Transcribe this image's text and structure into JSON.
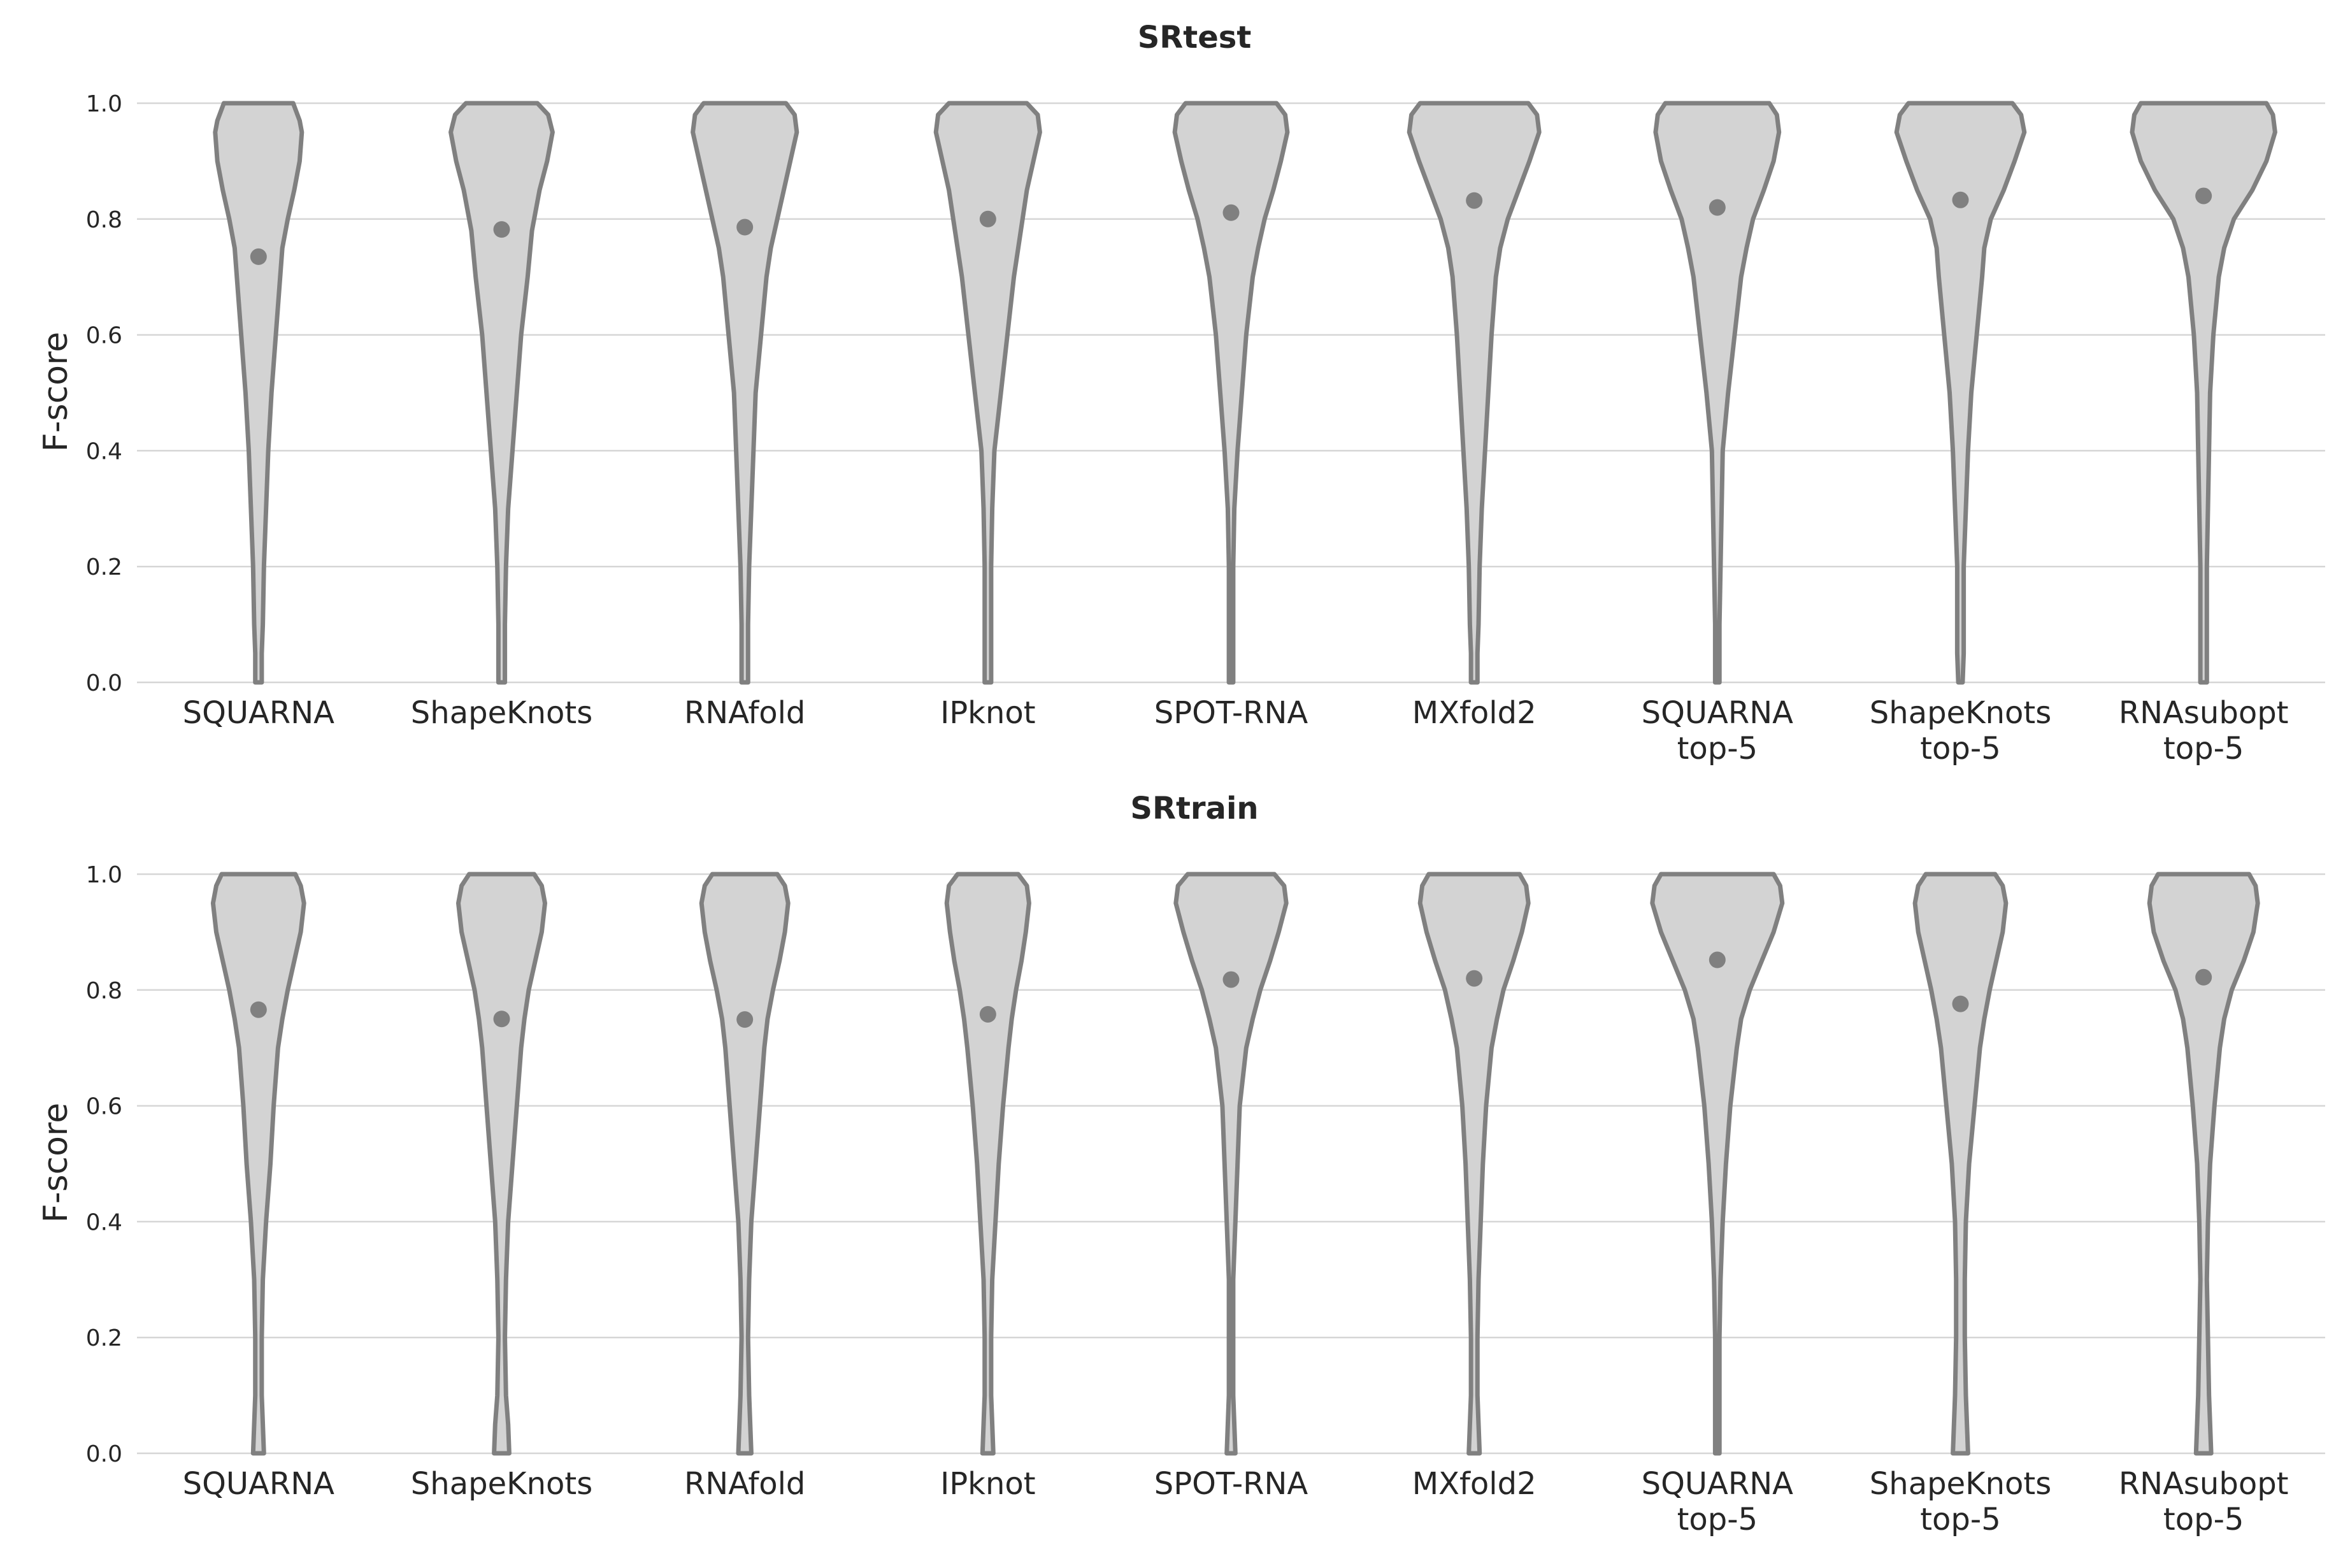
{
  "colors": {
    "violin_fill": "#d3d3d3",
    "violin_edge": "#808080",
    "grid": "#d6d6d6",
    "text": "#262626"
  },
  "chart_data": [
    {
      "type": "violin",
      "title": "SRtest",
      "xlabel": "",
      "ylabel": "F-score",
      "ylim": [
        0,
        1
      ],
      "yticks": [
        "0.0",
        "0.2",
        "0.4",
        "0.6",
        "0.8",
        "1.0"
      ],
      "grid": "horizontal",
      "categories": [
        [
          "SQUARNA"
        ],
        [
          "ShapeKnots"
        ],
        [
          "RNAfold"
        ],
        [
          "IPknot"
        ],
        [
          "SPOT-RNA"
        ],
        [
          "MXfold2"
        ],
        [
          "SQUARNA",
          "top-5"
        ],
        [
          "ShapeKnots",
          "top-5"
        ],
        [
          "RNAsubopt",
          "top-5"
        ]
      ],
      "means": [
        0.735,
        0.782,
        0.786,
        0.8,
        0.811,
        0.832,
        0.82,
        0.833,
        0.84
      ],
      "profiles": [
        [
          [
            0,
            0.03
          ],
          [
            0.05,
            0.03
          ],
          [
            0.1,
            0.04
          ],
          [
            0.2,
            0.05
          ],
          [
            0.25,
            0.06
          ],
          [
            0.3,
            0.07
          ],
          [
            0.4,
            0.09
          ],
          [
            0.5,
            0.12
          ],
          [
            0.6,
            0.16
          ],
          [
            0.65,
            0.18
          ],
          [
            0.7,
            0.2
          ],
          [
            0.75,
            0.22
          ],
          [
            0.8,
            0.27
          ],
          [
            0.85,
            0.33
          ],
          [
            0.9,
            0.38
          ],
          [
            0.95,
            0.4
          ],
          [
            0.97,
            0.38
          ],
          [
            0.99,
            0.34
          ],
          [
            1,
            0.32
          ]
        ],
        [
          [
            0,
            0.03
          ],
          [
            0.05,
            0.03
          ],
          [
            0.1,
            0.03
          ],
          [
            0.2,
            0.04
          ],
          [
            0.3,
            0.06
          ],
          [
            0.4,
            0.1
          ],
          [
            0.5,
            0.14
          ],
          [
            0.6,
            0.18
          ],
          [
            0.7,
            0.24
          ],
          [
            0.78,
            0.28
          ],
          [
            0.85,
            0.35
          ],
          [
            0.9,
            0.42
          ],
          [
            0.95,
            0.47
          ],
          [
            0.98,
            0.43
          ],
          [
            1,
            0.33
          ]
        ],
        [
          [
            0,
            0.03
          ],
          [
            0.05,
            0.03
          ],
          [
            0.1,
            0.03
          ],
          [
            0.2,
            0.04
          ],
          [
            0.3,
            0.06
          ],
          [
            0.4,
            0.08
          ],
          [
            0.5,
            0.1
          ],
          [
            0.6,
            0.15
          ],
          [
            0.7,
            0.2
          ],
          [
            0.75,
            0.24
          ],
          [
            0.8,
            0.3
          ],
          [
            0.85,
            0.36
          ],
          [
            0.9,
            0.42
          ],
          [
            0.95,
            0.48
          ],
          [
            0.98,
            0.46
          ],
          [
            1,
            0.38
          ]
        ],
        [
          [
            0,
            0.03
          ],
          [
            0.1,
            0.03
          ],
          [
            0.2,
            0.03
          ],
          [
            0.3,
            0.04
          ],
          [
            0.4,
            0.06
          ],
          [
            0.5,
            0.12
          ],
          [
            0.6,
            0.18
          ],
          [
            0.7,
            0.24
          ],
          [
            0.75,
            0.28
          ],
          [
            0.8,
            0.32
          ],
          [
            0.85,
            0.36
          ],
          [
            0.9,
            0.42
          ],
          [
            0.95,
            0.48
          ],
          [
            0.98,
            0.46
          ],
          [
            1,
            0.36
          ]
        ],
        [
          [
            0,
            0.02
          ],
          [
            0.1,
            0.02
          ],
          [
            0.2,
            0.02
          ],
          [
            0.3,
            0.03
          ],
          [
            0.4,
            0.06
          ],
          [
            0.5,
            0.1
          ],
          [
            0.6,
            0.14
          ],
          [
            0.7,
            0.2
          ],
          [
            0.75,
            0.25
          ],
          [
            0.8,
            0.31
          ],
          [
            0.85,
            0.39
          ],
          [
            0.9,
            0.46
          ],
          [
            0.95,
            0.52
          ],
          [
            0.98,
            0.5
          ],
          [
            1,
            0.42
          ]
        ],
        [
          [
            0,
            0.03
          ],
          [
            0.05,
            0.03
          ],
          [
            0.1,
            0.04
          ],
          [
            0.2,
            0.05
          ],
          [
            0.3,
            0.07
          ],
          [
            0.4,
            0.1
          ],
          [
            0.5,
            0.13
          ],
          [
            0.6,
            0.16
          ],
          [
            0.7,
            0.2
          ],
          [
            0.75,
            0.24
          ],
          [
            0.8,
            0.31
          ],
          [
            0.85,
            0.41
          ],
          [
            0.9,
            0.51
          ],
          [
            0.95,
            0.6
          ],
          [
            0.98,
            0.58
          ],
          [
            1,
            0.5
          ]
        ],
        [
          [
            0,
            0.02
          ],
          [
            0.1,
            0.02
          ],
          [
            0.2,
            0.03
          ],
          [
            0.3,
            0.04
          ],
          [
            0.4,
            0.05
          ],
          [
            0.5,
            0.1
          ],
          [
            0.6,
            0.16
          ],
          [
            0.7,
            0.22
          ],
          [
            0.75,
            0.27
          ],
          [
            0.8,
            0.33
          ],
          [
            0.85,
            0.43
          ],
          [
            0.9,
            0.52
          ],
          [
            0.95,
            0.57
          ],
          [
            0.98,
            0.55
          ],
          [
            1,
            0.48
          ]
        ],
        [
          [
            0,
            0.02
          ],
          [
            0.05,
            0.03
          ],
          [
            0.1,
            0.03
          ],
          [
            0.2,
            0.03
          ],
          [
            0.3,
            0.05
          ],
          [
            0.4,
            0.07
          ],
          [
            0.5,
            0.1
          ],
          [
            0.6,
            0.15
          ],
          [
            0.7,
            0.2
          ],
          [
            0.75,
            0.22
          ],
          [
            0.8,
            0.28
          ],
          [
            0.85,
            0.4
          ],
          [
            0.9,
            0.5
          ],
          [
            0.95,
            0.59
          ],
          [
            0.98,
            0.56
          ],
          [
            1,
            0.48
          ]
        ],
        [
          [
            0,
            0.03
          ],
          [
            0.1,
            0.03
          ],
          [
            0.2,
            0.03
          ],
          [
            0.3,
            0.04
          ],
          [
            0.4,
            0.05
          ],
          [
            0.5,
            0.06
          ],
          [
            0.6,
            0.09
          ],
          [
            0.7,
            0.14
          ],
          [
            0.75,
            0.19
          ],
          [
            0.8,
            0.28
          ],
          [
            0.85,
            0.45
          ],
          [
            0.9,
            0.58
          ],
          [
            0.95,
            0.66
          ],
          [
            0.98,
            0.64
          ],
          [
            1,
            0.58
          ]
        ]
      ]
    },
    {
      "type": "violin",
      "title": "SRtrain",
      "xlabel": "",
      "ylabel": "F-score",
      "ylim": [
        0,
        1
      ],
      "yticks": [
        "0.0",
        "0.2",
        "0.4",
        "0.6",
        "0.8",
        "1.0"
      ],
      "grid": "horizontal",
      "categories": [
        [
          "SQUARNA"
        ],
        [
          "ShapeKnots"
        ],
        [
          "RNAfold"
        ],
        [
          "IPknot"
        ],
        [
          "SPOT-RNA"
        ],
        [
          "MXfold2"
        ],
        [
          "SQUARNA",
          "top-5"
        ],
        [
          "ShapeKnots",
          "top-5"
        ],
        [
          "RNAsubopt",
          "top-5"
        ]
      ],
      "means": [
        0.766,
        0.75,
        0.749,
        0.758,
        0.818,
        0.82,
        0.852,
        0.776,
        0.822
      ],
      "profiles": [
        [
          [
            0,
            0.05
          ],
          [
            0.05,
            0.04
          ],
          [
            0.1,
            0.03
          ],
          [
            0.2,
            0.03
          ],
          [
            0.3,
            0.04
          ],
          [
            0.4,
            0.07
          ],
          [
            0.5,
            0.11
          ],
          [
            0.6,
            0.14
          ],
          [
            0.7,
            0.18
          ],
          [
            0.75,
            0.22
          ],
          [
            0.8,
            0.27
          ],
          [
            0.85,
            0.33
          ],
          [
            0.9,
            0.39
          ],
          [
            0.95,
            0.42
          ],
          [
            0.98,
            0.39
          ],
          [
            1,
            0.34
          ]
        ],
        [
          [
            0,
            0.07
          ],
          [
            0.05,
            0.06
          ],
          [
            0.1,
            0.04
          ],
          [
            0.2,
            0.03
          ],
          [
            0.3,
            0.04
          ],
          [
            0.4,
            0.06
          ],
          [
            0.5,
            0.1
          ],
          [
            0.6,
            0.14
          ],
          [
            0.7,
            0.18
          ],
          [
            0.75,
            0.21
          ],
          [
            0.8,
            0.25
          ],
          [
            0.85,
            0.31
          ],
          [
            0.9,
            0.37
          ],
          [
            0.95,
            0.4
          ],
          [
            0.98,
            0.37
          ],
          [
            1,
            0.3
          ]
        ],
        [
          [
            0,
            0.06
          ],
          [
            0.05,
            0.05
          ],
          [
            0.1,
            0.04
          ],
          [
            0.2,
            0.03
          ],
          [
            0.3,
            0.04
          ],
          [
            0.4,
            0.06
          ],
          [
            0.5,
            0.1
          ],
          [
            0.6,
            0.14
          ],
          [
            0.7,
            0.18
          ],
          [
            0.75,
            0.21
          ],
          [
            0.8,
            0.26
          ],
          [
            0.85,
            0.32
          ],
          [
            0.9,
            0.37
          ],
          [
            0.95,
            0.4
          ],
          [
            0.98,
            0.37
          ],
          [
            1,
            0.3
          ]
        ],
        [
          [
            0,
            0.05
          ],
          [
            0.05,
            0.04
          ],
          [
            0.1,
            0.03
          ],
          [
            0.2,
            0.03
          ],
          [
            0.3,
            0.04
          ],
          [
            0.4,
            0.07
          ],
          [
            0.5,
            0.1
          ],
          [
            0.6,
            0.14
          ],
          [
            0.7,
            0.19
          ],
          [
            0.75,
            0.22
          ],
          [
            0.8,
            0.26
          ],
          [
            0.85,
            0.31
          ],
          [
            0.9,
            0.35
          ],
          [
            0.95,
            0.38
          ],
          [
            0.98,
            0.36
          ],
          [
            1,
            0.28
          ]
        ],
        [
          [
            0,
            0.04
          ],
          [
            0.05,
            0.03
          ],
          [
            0.1,
            0.02
          ],
          [
            0.2,
            0.02
          ],
          [
            0.3,
            0.02
          ],
          [
            0.4,
            0.04
          ],
          [
            0.5,
            0.06
          ],
          [
            0.6,
            0.08
          ],
          [
            0.7,
            0.14
          ],
          [
            0.75,
            0.2
          ],
          [
            0.8,
            0.27
          ],
          [
            0.85,
            0.36
          ],
          [
            0.9,
            0.44
          ],
          [
            0.95,
            0.51
          ],
          [
            0.98,
            0.49
          ],
          [
            1,
            0.4
          ]
        ],
        [
          [
            0,
            0.05
          ],
          [
            0.05,
            0.04
          ],
          [
            0.1,
            0.03
          ],
          [
            0.2,
            0.03
          ],
          [
            0.3,
            0.04
          ],
          [
            0.4,
            0.06
          ],
          [
            0.5,
            0.08
          ],
          [
            0.6,
            0.11
          ],
          [
            0.7,
            0.16
          ],
          [
            0.75,
            0.21
          ],
          [
            0.8,
            0.27
          ],
          [
            0.85,
            0.36
          ],
          [
            0.9,
            0.44
          ],
          [
            0.95,
            0.5
          ],
          [
            0.98,
            0.48
          ],
          [
            1,
            0.42
          ]
        ],
        [
          [
            0,
            0.02
          ],
          [
            0.1,
            0.02
          ],
          [
            0.2,
            0.02
          ],
          [
            0.3,
            0.03
          ],
          [
            0.4,
            0.05
          ],
          [
            0.5,
            0.08
          ],
          [
            0.6,
            0.12
          ],
          [
            0.7,
            0.18
          ],
          [
            0.75,
            0.22
          ],
          [
            0.8,
            0.3
          ],
          [
            0.85,
            0.41
          ],
          [
            0.9,
            0.52
          ],
          [
            0.95,
            0.6
          ],
          [
            0.98,
            0.58
          ],
          [
            1,
            0.52
          ]
        ],
        [
          [
            0,
            0.07
          ],
          [
            0.05,
            0.06
          ],
          [
            0.1,
            0.05
          ],
          [
            0.2,
            0.04
          ],
          [
            0.3,
            0.04
          ],
          [
            0.4,
            0.05
          ],
          [
            0.5,
            0.08
          ],
          [
            0.6,
            0.13
          ],
          [
            0.7,
            0.18
          ],
          [
            0.75,
            0.22
          ],
          [
            0.8,
            0.27
          ],
          [
            0.85,
            0.33
          ],
          [
            0.9,
            0.39
          ],
          [
            0.95,
            0.42
          ],
          [
            0.98,
            0.39
          ],
          [
            1,
            0.32
          ]
        ],
        [
          [
            0,
            0.07
          ],
          [
            0.05,
            0.06
          ],
          [
            0.1,
            0.05
          ],
          [
            0.2,
            0.04
          ],
          [
            0.3,
            0.03
          ],
          [
            0.4,
            0.04
          ],
          [
            0.5,
            0.06
          ],
          [
            0.6,
            0.1
          ],
          [
            0.7,
            0.15
          ],
          [
            0.75,
            0.19
          ],
          [
            0.8,
            0.26
          ],
          [
            0.85,
            0.37
          ],
          [
            0.9,
            0.46
          ],
          [
            0.95,
            0.5
          ],
          [
            0.98,
            0.48
          ],
          [
            1,
            0.42
          ]
        ]
      ]
    }
  ]
}
